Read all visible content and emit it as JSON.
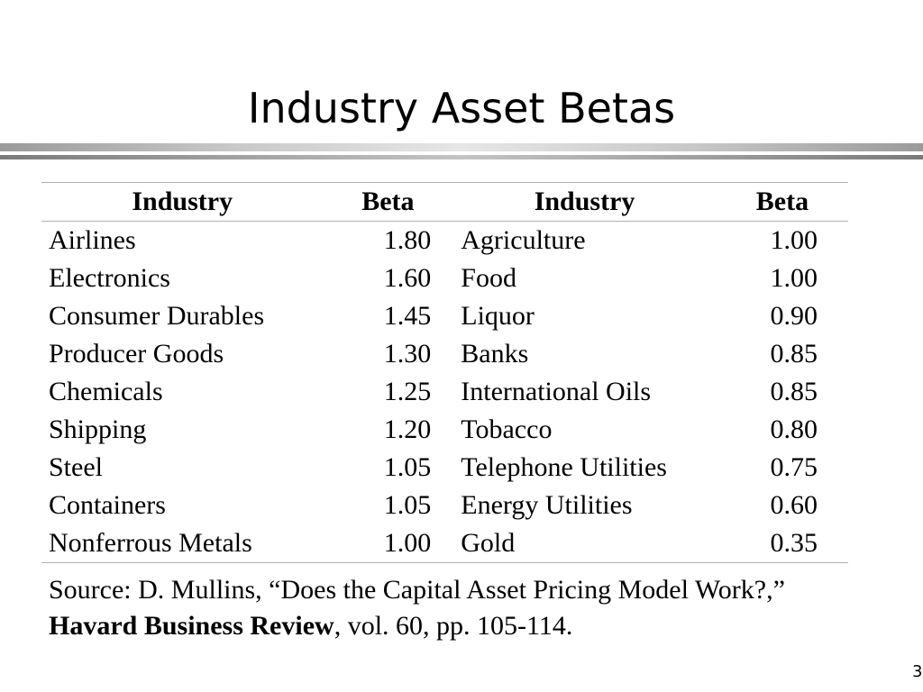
{
  "title": "Industry Asset Betas",
  "table": {
    "headers": [
      "Industry",
      "Beta",
      "Industry",
      "Beta"
    ],
    "rows": [
      {
        "industry1": "Airlines",
        "beta1": "1.80",
        "industry2": "Agriculture",
        "beta2": "1.00"
      },
      {
        "industry1": "Electronics",
        "beta1": "1.60",
        "industry2": "Food",
        "beta2": "1.00"
      },
      {
        "industry1": "Consumer Durables",
        "beta1": "1.45",
        "industry2": "Liquor",
        "beta2": "0.90"
      },
      {
        "industry1": "Producer Goods",
        "beta1": "1.30",
        "industry2": "Banks",
        "beta2": "0.85"
      },
      {
        "industry1": "Chemicals",
        "beta1": "1.25",
        "industry2": "International Oils",
        "beta2": "0.85"
      },
      {
        "industry1": "Shipping",
        "beta1": "1.20",
        "industry2": "Tobacco",
        "beta2": "0.80"
      },
      {
        "industry1": "Steel",
        "beta1": "1.05",
        "industry2": "Telephone Utilities",
        "beta2": "0.75"
      },
      {
        "industry1": "Containers",
        "beta1": "1.05",
        "industry2": "Energy Utilities",
        "beta2": "0.60"
      },
      {
        "industry1": "Nonferrous Metals",
        "beta1": "1.00",
        "industry2": "Gold",
        "beta2": "0.35"
      }
    ]
  },
  "source": {
    "prefix": "Source: D. Mullins, “Does the Capital Asset Pricing Model Work?,” ",
    "journal": "Havard Business Review",
    "suffix": ", vol. 60, pp. 105-114."
  },
  "page_number": "3"
}
